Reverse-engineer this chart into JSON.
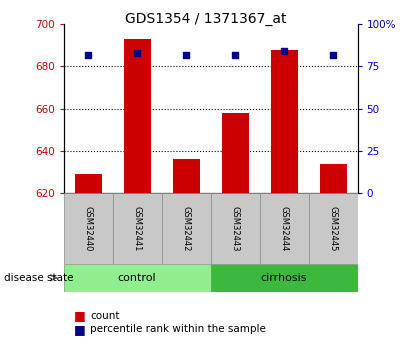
{
  "title": "GDS1354 / 1371367_at",
  "samples": [
    "GSM32440",
    "GSM32441",
    "GSM32442",
    "GSM32443",
    "GSM32444",
    "GSM32445"
  ],
  "count_values": [
    629,
    693,
    636,
    658,
    688,
    634
  ],
  "percentile_values": [
    82,
    83,
    82,
    82,
    84,
    82
  ],
  "baseline": 620,
  "ylim_left": [
    620,
    700
  ],
  "ylim_right": [
    0,
    100
  ],
  "yticks_left": [
    620,
    640,
    660,
    680,
    700
  ],
  "ytick_labels_right": [
    "0",
    "25",
    "50",
    "75",
    "100%"
  ],
  "bar_color": "#CC0000",
  "dot_color": "#00008B",
  "bar_width": 0.55,
  "control_color": "#90EE90",
  "cirrhosis_color": "#3CB93C",
  "disease_state_label": "disease state",
  "legend_count_label": "count",
  "legend_pct_label": "percentile rank within the sample",
  "grid_lines": [
    640,
    660,
    680
  ],
  "tick_label_color_left": "#CC0000",
  "tick_label_color_right": "#0000CC"
}
